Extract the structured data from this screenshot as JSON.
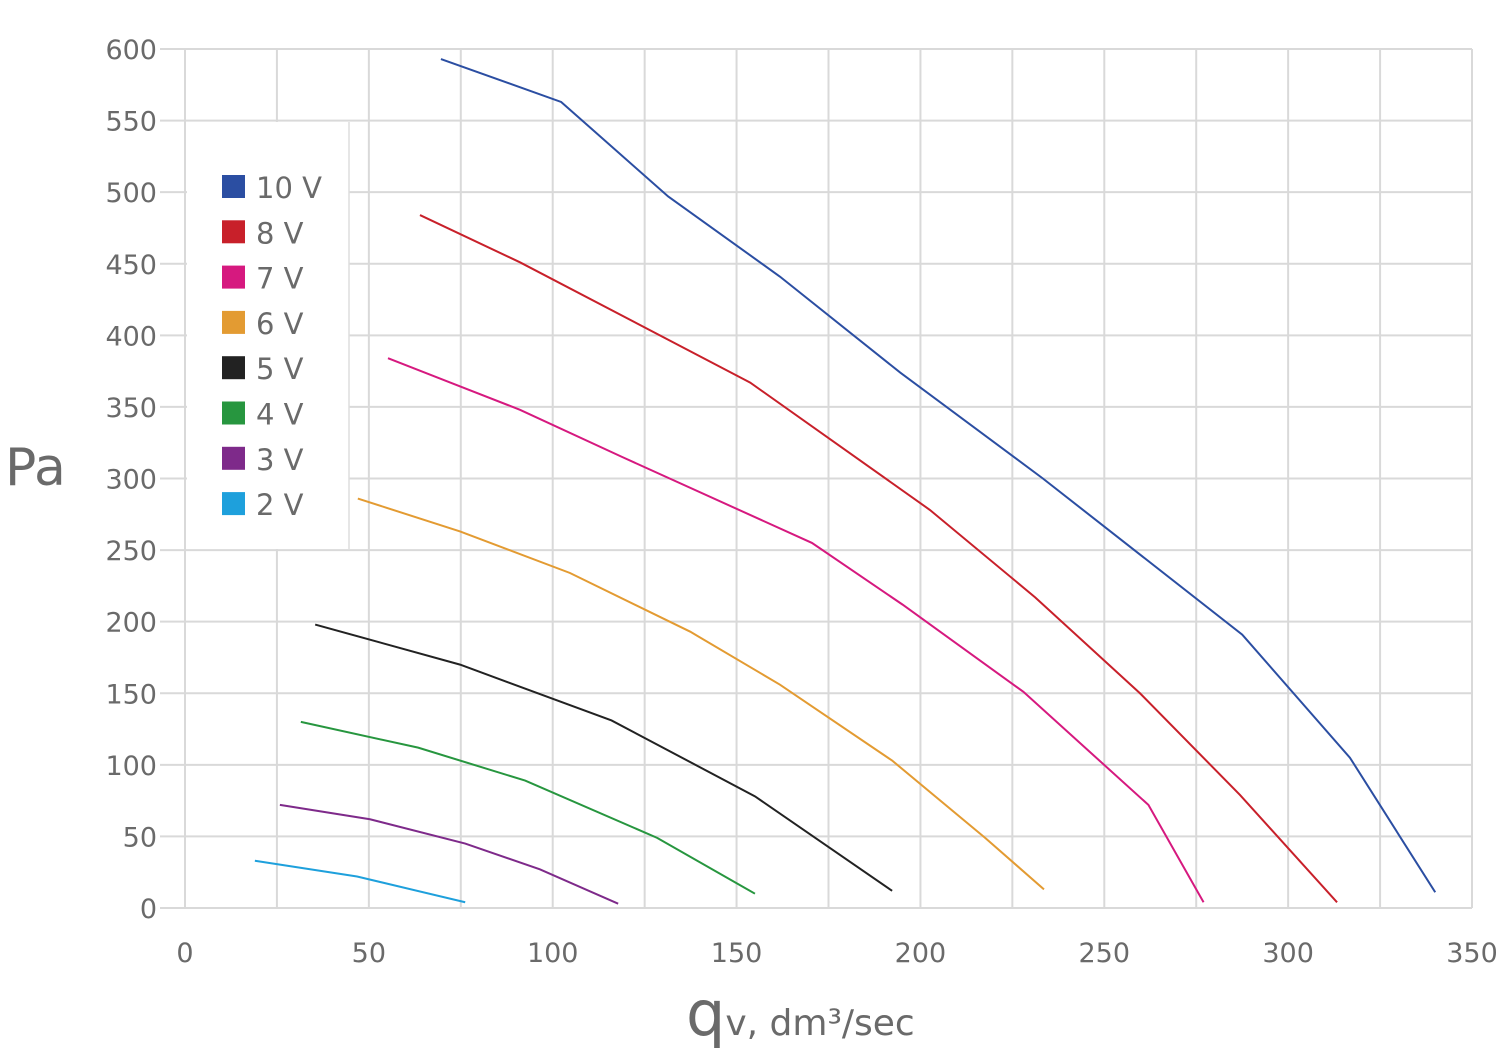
{
  "chart_data": {
    "type": "line",
    "title": "",
    "xlabel": "qv, dm³/sec",
    "xlabel_parts": {
      "big": "q",
      "rest": "v, dm³/sec"
    },
    "ylabel": "Pa",
    "xlim": [
      0,
      350
    ],
    "ylim": [
      0,
      600
    ],
    "xticks": [
      0,
      50,
      100,
      150,
      200,
      250,
      300,
      350
    ],
    "yticks": [
      0,
      50,
      100,
      150,
      200,
      250,
      300,
      350,
      400,
      450,
      500,
      550,
      600
    ],
    "grid": true,
    "legend_position": "top-left",
    "series": [
      {
        "name": "10 V",
        "color": "#2b4ea2",
        "points": [
          [
            69.6,
            593
          ],
          [
            102.3,
            563
          ],
          [
            131.4,
            497
          ],
          [
            161.8,
            441
          ],
          [
            194.5,
            374
          ],
          [
            233.3,
            300
          ],
          [
            287.5,
            191
          ],
          [
            316.8,
            105
          ],
          [
            340,
            11
          ]
        ]
      },
      {
        "name": "8 V",
        "color": "#c8202a",
        "points": [
          [
            63.9,
            484
          ],
          [
            91.1,
            451
          ],
          [
            153.7,
            367
          ],
          [
            202.6,
            278
          ],
          [
            231.2,
            217
          ],
          [
            259.7,
            150
          ],
          [
            286.9,
            79
          ],
          [
            313.3,
            4
          ]
        ]
      },
      {
        "name": "7 V",
        "color": "#d6197f",
        "points": [
          [
            55.2,
            384
          ],
          [
            91.1,
            348
          ],
          [
            118.9,
            315
          ],
          [
            170.5,
            255
          ],
          [
            195.1,
            212
          ],
          [
            228,
            151
          ],
          [
            262,
            72
          ],
          [
            277,
            4
          ]
        ]
      },
      {
        "name": "6 V",
        "color": "#e39b32",
        "points": [
          [
            47,
            286
          ],
          [
            74.8,
            263
          ],
          [
            104.7,
            234
          ],
          [
            137.4,
            193
          ],
          [
            161.8,
            156
          ],
          [
            192.3,
            103
          ],
          [
            217.6,
            49
          ],
          [
            233.6,
            13
          ]
        ]
      },
      {
        "name": "5 V",
        "color": "#222222",
        "points": [
          [
            35.4,
            198
          ],
          [
            74.8,
            170
          ],
          [
            116,
            131
          ],
          [
            155,
            78
          ],
          [
            192.3,
            12
          ]
        ]
      },
      {
        "name": "4 V",
        "color": "#27963f",
        "points": [
          [
            31.5,
            130
          ],
          [
            63.4,
            112
          ],
          [
            92.5,
            89
          ],
          [
            128.4,
            49
          ],
          [
            155,
            10
          ]
        ]
      },
      {
        "name": "3 V",
        "color": "#7e2a8a",
        "points": [
          [
            25.8,
            72
          ],
          [
            50.3,
            62
          ],
          [
            76.2,
            45
          ],
          [
            96.5,
            27
          ],
          [
            117.8,
            3
          ]
        ]
      },
      {
        "name": "2 V",
        "color": "#1ea0dc",
        "points": [
          [
            19,
            33
          ],
          [
            46.8,
            22
          ],
          [
            76.2,
            4
          ]
        ]
      }
    ]
  }
}
